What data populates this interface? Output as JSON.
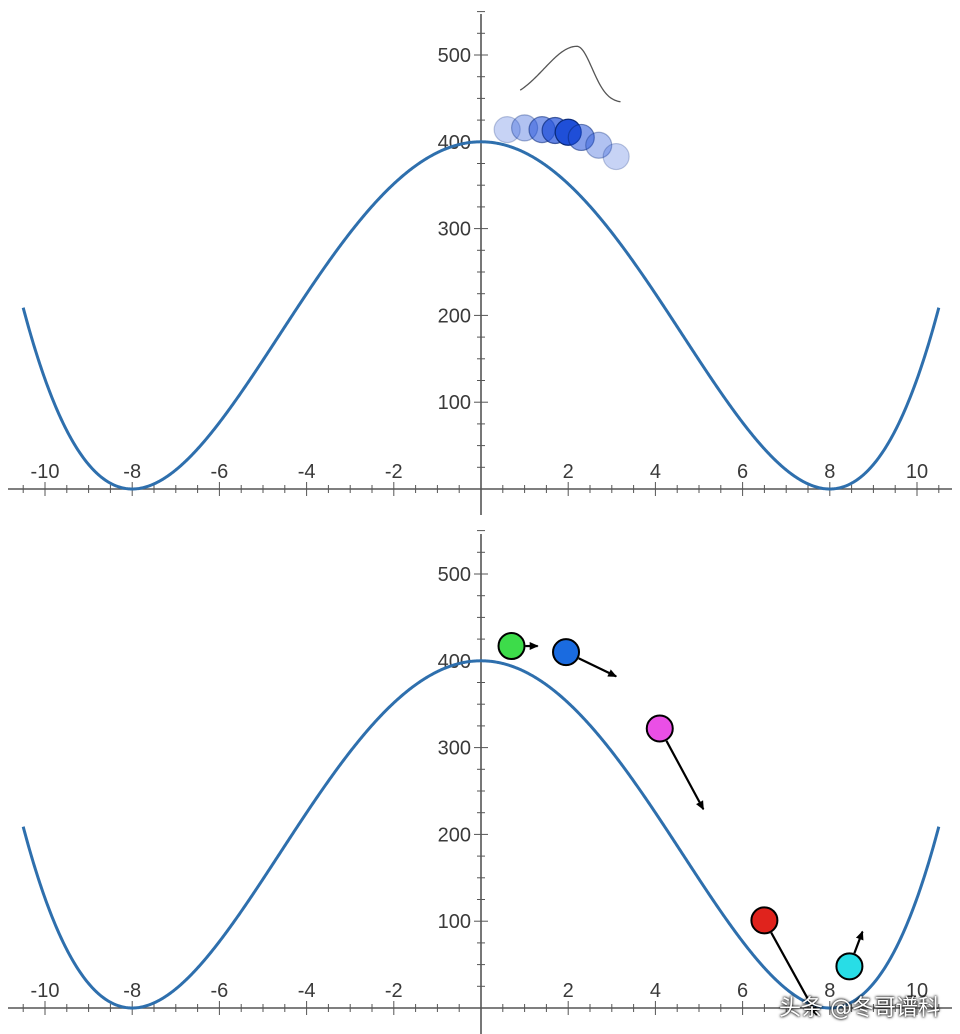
{
  "chart_data": [
    {
      "type": "line",
      "function": "(x^2 - 64)^2 / 10.24",
      "xlim": [
        -10.5,
        10.5
      ],
      "ylim": [
        0,
        550
      ],
      "x_ticks": [
        -10,
        -8,
        -6,
        -4,
        -2,
        2,
        4,
        6,
        8,
        10
      ],
      "y_ticks": [
        100,
        200,
        300,
        400,
        500
      ],
      "grid": false,
      "series": [
        {
          "values_at_x": {
            "-10": 126.6,
            "-8": 0,
            "-4": 225,
            "0": 400,
            "4": 225,
            "8": 0,
            "10": 126.6
          }
        }
      ],
      "markers": [
        {
          "x": 0.6,
          "y": 414,
          "opacity": 0.25
        },
        {
          "x": 1.0,
          "y": 416,
          "opacity": 0.35
        },
        {
          "x": 1.4,
          "y": 414,
          "opacity": 0.55
        },
        {
          "x": 1.7,
          "y": 413,
          "opacity": 0.7
        },
        {
          "x": 2.0,
          "y": 411,
          "opacity": 1.0
        },
        {
          "x": 2.3,
          "y": 405,
          "opacity": 0.55
        },
        {
          "x": 2.7,
          "y": 396,
          "opacity": 0.35
        },
        {
          "x": 3.1,
          "y": 383,
          "opacity": 0.25
        }
      ],
      "distribution_curve": {
        "center_x": 2.2,
        "peak_y": 510,
        "base_y": 445,
        "x_range": [
          0.9,
          3.2
        ]
      }
    },
    {
      "type": "line",
      "function": "(x^2 - 64)^2 / 10.24",
      "xlim": [
        -10.5,
        10.5
      ],
      "ylim": [
        0,
        550
      ],
      "x_ticks": [
        -10,
        -8,
        -6,
        -4,
        -2,
        2,
        4,
        6,
        8,
        10
      ],
      "y_ticks": [
        100,
        200,
        300,
        400,
        500
      ],
      "grid": false,
      "series": [
        {
          "values_at_x": {
            "-10": 126.6,
            "-8": 0,
            "-4": 225,
            "0": 400,
            "4": 225,
            "8": 0,
            "10": 126.6
          }
        }
      ],
      "balls": [
        {
          "x": 0.7,
          "y": 417,
          "color": "#3ddc4a",
          "arrow_to": [
            1.3,
            417
          ]
        },
        {
          "x": 1.95,
          "y": 410,
          "color": "#1a6be0",
          "arrow_to": [
            3.1,
            382
          ]
        },
        {
          "x": 4.1,
          "y": 322,
          "color": "#ea4fe6",
          "arrow_to": [
            5.1,
            229
          ]
        },
        {
          "x": 6.5,
          "y": 101,
          "color": "#e0231d",
          "arrow_to": [
            7.7,
            -8
          ]
        },
        {
          "x": 8.45,
          "y": 48,
          "color": "#28dde6",
          "arrow_to": [
            8.75,
            88
          ]
        }
      ]
    }
  ],
  "colors": {
    "curve": "#2e6fad",
    "axis": "#555555",
    "marker": "#1f4fd8"
  },
  "watermark": "头条 @冬哥谱科"
}
